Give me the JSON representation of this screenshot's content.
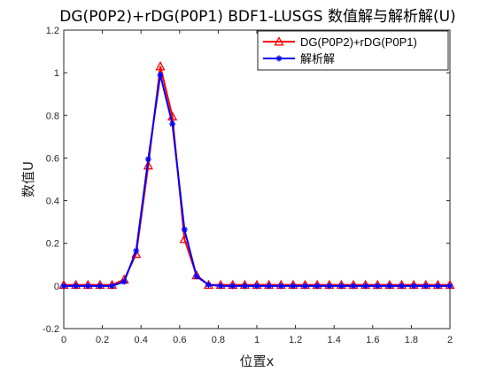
{
  "chart_data": {
    "type": "line",
    "title": "DG(P0P2)+rDG(P0P1) BDF1-LUSGS 数值解与解析解(U)",
    "xlabel": "位置x",
    "ylabel": "数值U",
    "xlim": [
      0,
      2
    ],
    "ylim": [
      -0.2,
      1.2
    ],
    "xticks": [
      "0",
      "0.2",
      "0.4",
      "0.6",
      "0.8",
      "1",
      "1.2",
      "1.4",
      "1.6",
      "1.8",
      "2"
    ],
    "yticks": [
      "-0.2",
      "0",
      "0.2",
      "0.4",
      "0.6",
      "0.8",
      "1",
      "1.2"
    ],
    "grid": false,
    "legend_position": "top-right",
    "x": [
      0,
      0.0625,
      0.125,
      0.1875,
      0.25,
      0.3125,
      0.375,
      0.4375,
      0.5,
      0.5625,
      0.625,
      0.6875,
      0.75,
      0.8125,
      0.875,
      0.9375,
      1.0,
      1.0625,
      1.125,
      1.1875,
      1.25,
      1.3125,
      1.375,
      1.4375,
      1.5,
      1.5625,
      1.625,
      1.6875,
      1.75,
      1.8125,
      1.875,
      1.9375,
      2.0
    ],
    "series": [
      {
        "name": "DG(P0P2)+rDG(P0P1)",
        "color": "#ff0000",
        "marker": "triangle",
        "values": [
          0.005,
          0.005,
          0.005,
          0.005,
          0.005,
          0.03,
          0.15,
          0.565,
          1.03,
          0.795,
          0.22,
          0.05,
          0.005,
          0.005,
          0.005,
          0.005,
          0.005,
          0.005,
          0.005,
          0.005,
          0.005,
          0.005,
          0.005,
          0.005,
          0.005,
          0.005,
          0.005,
          0.005,
          0.005,
          0.005,
          0.005,
          0.005,
          0.005
        ]
      },
      {
        "name": "解析解",
        "color": "#0000ff",
        "marker": "star",
        "values": [
          0,
          0,
          0,
          0,
          0,
          0.02,
          0.165,
          0.595,
          0.99,
          0.76,
          0.265,
          0.045,
          0.005,
          0,
          0,
          0,
          0,
          0,
          0,
          0,
          0,
          0,
          0,
          0,
          0,
          0,
          0,
          0,
          0,
          0,
          0,
          0,
          0
        ]
      }
    ]
  }
}
